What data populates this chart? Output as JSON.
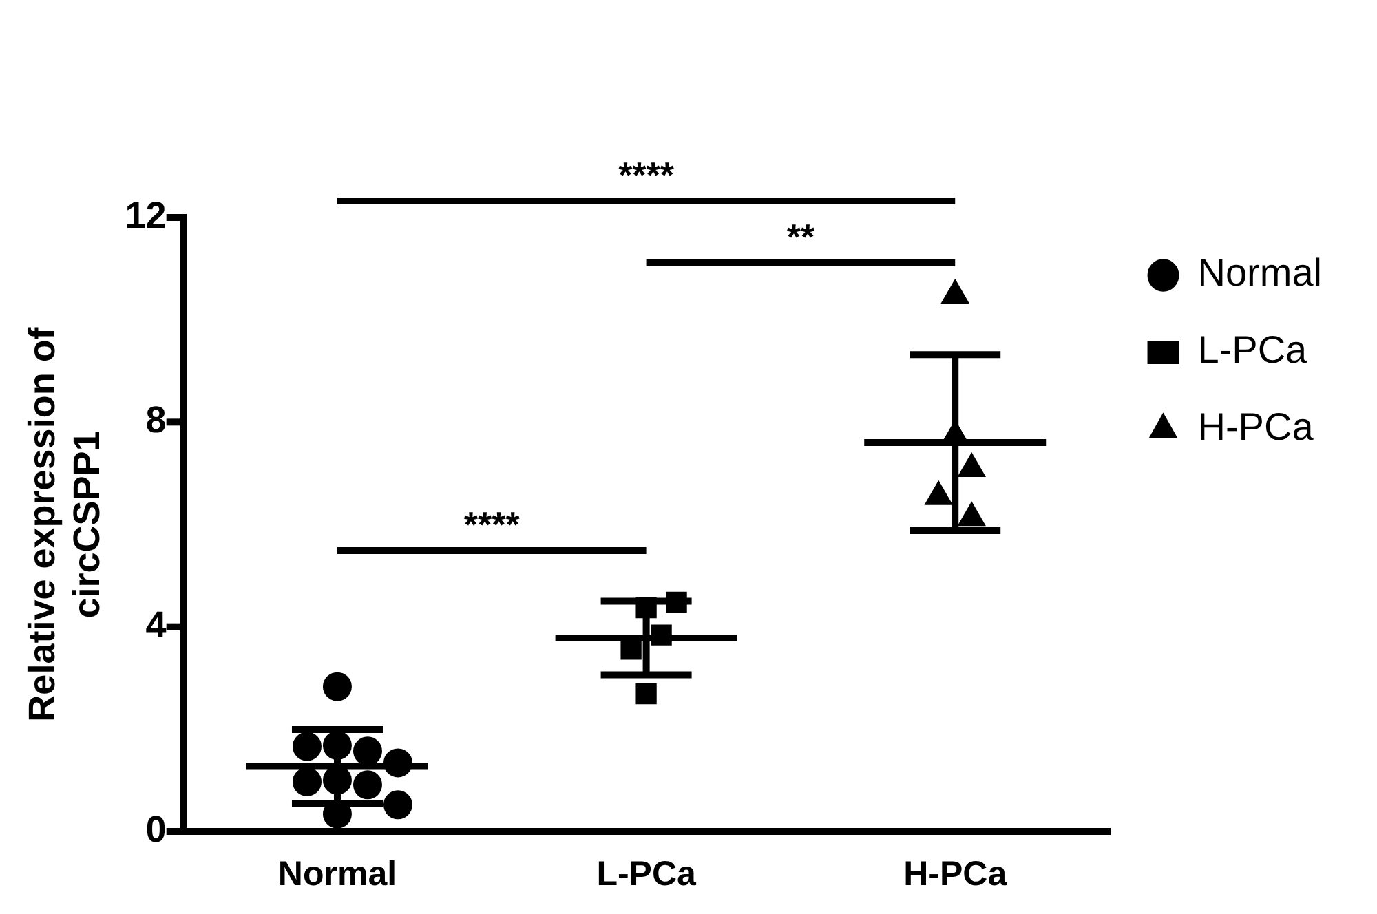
{
  "chart_data": {
    "type": "scatter",
    "ylabel": "Relative expression of\ncircCSPP1",
    "categories": [
      "Normal",
      "L-PCa",
      "H-PCa"
    ],
    "series": [
      {
        "name": "Normal",
        "color": "#000000",
        "marker": "circle",
        "x": [
          "Normal",
          "Normal",
          "Normal",
          "Normal",
          "Normal",
          "Normal",
          "Normal",
          "Normal",
          "Normal",
          "Normal"
        ],
        "values": [
          2.83,
          1.68,
          1.57,
          1.66,
          1.34,
          1.0,
          0.91,
          0.97,
          0.52,
          0.34
        ]
      },
      {
        "name": "L-PCa",
        "color": "#000000",
        "marker": "square",
        "x": [
          "L-PCa",
          "L-PCa",
          "L-PCa",
          "L-PCa",
          "L-PCa"
        ],
        "values": [
          4.37,
          4.48,
          3.84,
          3.56,
          2.69
        ]
      },
      {
        "name": "H-PCa",
        "color": "#000000",
        "marker": "triangle",
        "x": [
          "H-PCa",
          "H-PCa",
          "H-PCa",
          "H-PCa",
          "H-PCa"
        ],
        "values": [
          10.48,
          7.73,
          7.09,
          6.54,
          6.13
        ]
      },
      {
        "type": "box",
        "color": "#000000",
        "boxes": [
          {
            "low": 0.55,
            "q1": 1.27,
            "median": 1.27,
            "q3": 1.27,
            "high": 1.99
          },
          {
            "low": 3.06,
            "q1": 3.78,
            "median": 3.78,
            "q3": 3.78,
            "high": 4.5
          },
          {
            "low": 5.88,
            "q1": 7.6,
            "median": 7.6,
            "q3": 7.6,
            "high": 9.32
          }
        ]
      }
    ],
    "ylim": [
      0,
      12
    ],
    "yticks": [
      0,
      4,
      8,
      12
    ],
    "grid": false,
    "legend": "top right",
    "annotations": [
      "****",
      "****",
      "**"
    ]
  }
}
